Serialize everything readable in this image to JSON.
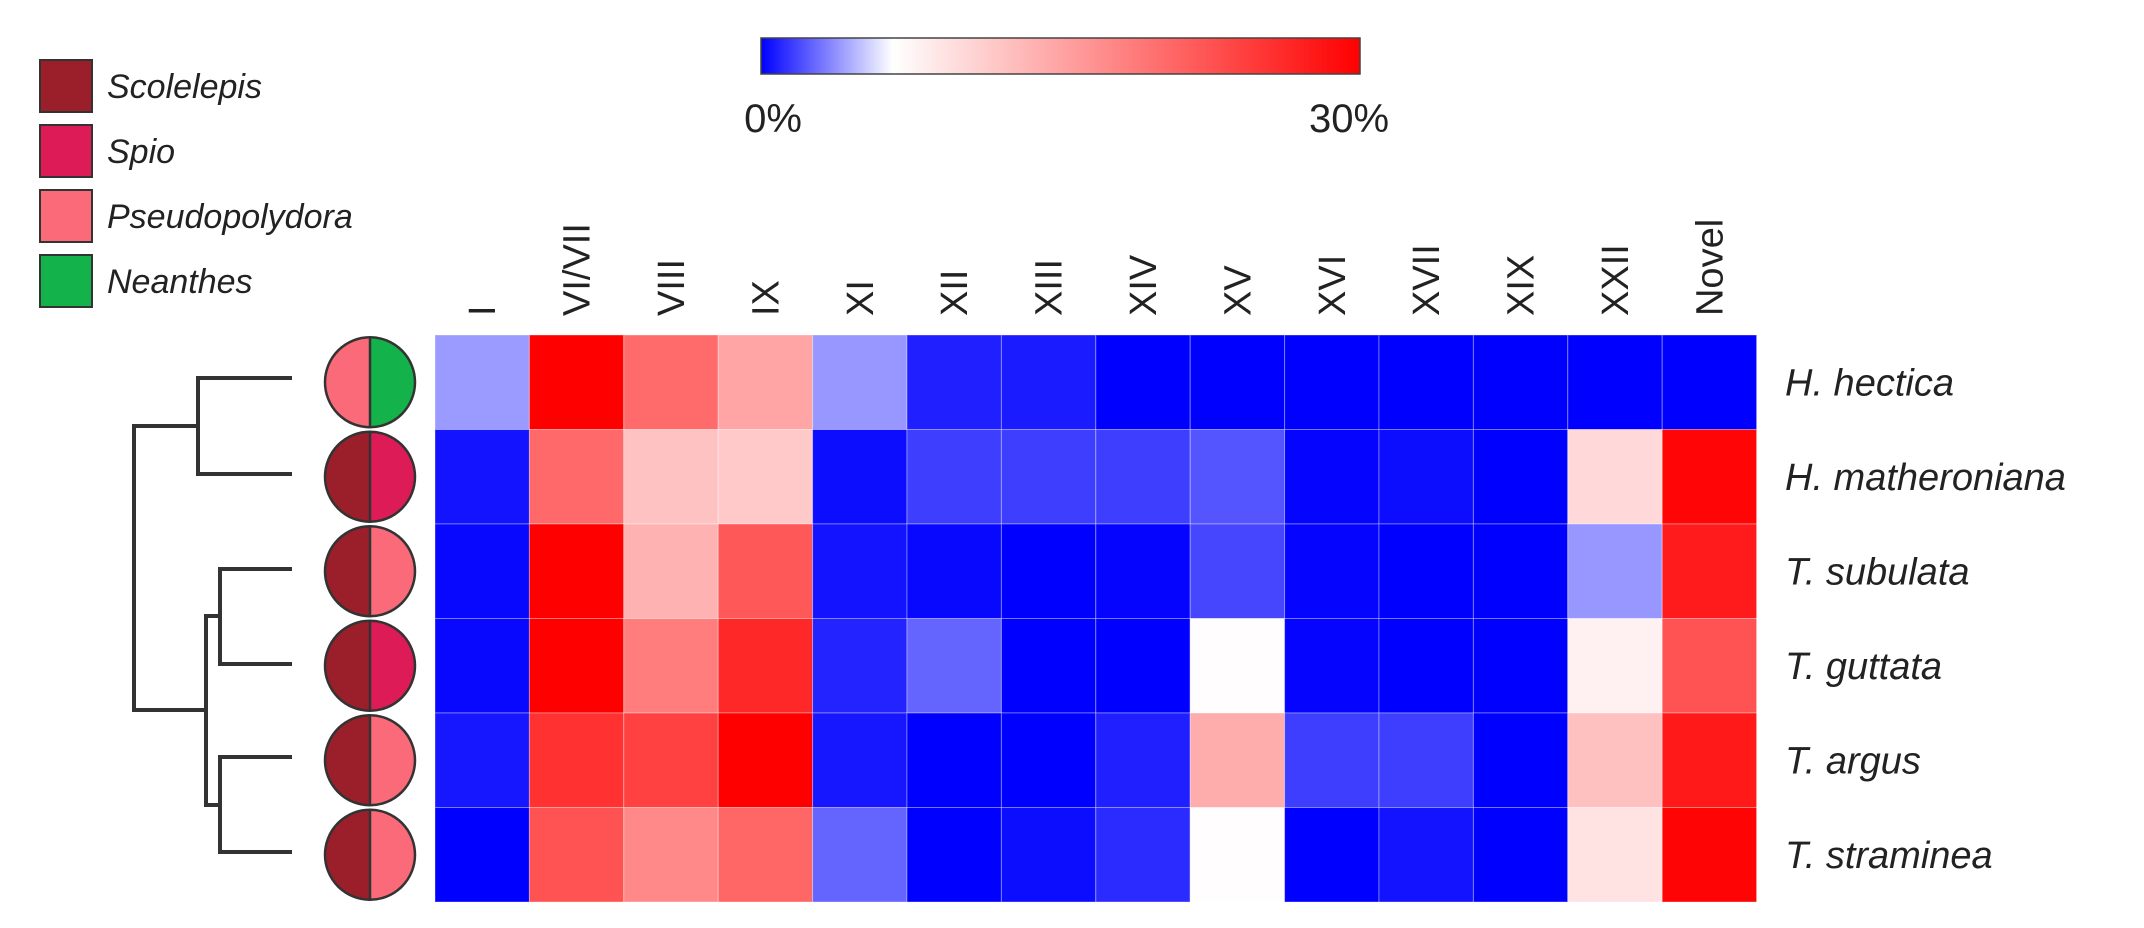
{
  "chart_data": {
    "type": "heatmap",
    "colorbar": {
      "min_label": "0%",
      "max_label": "30%",
      "min": 0,
      "max": 30,
      "colors": [
        "#0000ff",
        "#ffffff",
        "#ff0000"
      ]
    },
    "columns": [
      "I",
      "VI/VII",
      "VIII",
      "IX",
      "XI",
      "XII",
      "XIII",
      "XIV",
      "XV",
      "XVI",
      "XVII",
      "XIX",
      "XXII",
      "Novel"
    ],
    "rows": [
      "H. hectica",
      "H. matheroniana",
      "T. subulata",
      "T. guttata",
      "T. argus",
      "T. straminea"
    ],
    "values": [
      [
        4.0,
        30.0,
        20.3,
        14.9,
        3.9,
        0.8,
        0.7,
        0.0,
        0.0,
        0.0,
        0.0,
        0.0,
        0.0,
        0.0
      ],
      [
        0.5,
        20.4,
        12.2,
        11.6,
        0.3,
        1.6,
        1.6,
        1.6,
        2.2,
        0.1,
        0.3,
        0.0,
        10.1,
        29.5
      ],
      [
        0.2,
        30.0,
        13.7,
        21.9,
        0.5,
        0.2,
        0.0,
        0.1,
        1.8,
        0.1,
        0.0,
        0.0,
        3.9,
        27.5
      ],
      [
        0.2,
        30.0,
        18.5,
        26.3,
        0.9,
        2.6,
        0.0,
        0.0,
        6.8,
        0.1,
        0.0,
        0.0,
        7.9,
        22.4
      ],
      [
        0.6,
        25.5,
        24.0,
        30.0,
        0.6,
        0.0,
        0.0,
        0.8,
        14.2,
        1.6,
        1.6,
        0.0,
        12.4,
        27.7
      ],
      [
        0.0,
        22.4,
        17.5,
        20.6,
        2.6,
        0.0,
        0.3,
        1.1,
        6.8,
        0.0,
        0.5,
        0.0,
        9.2,
        29.6
      ]
    ],
    "legend": [
      {
        "label": "Scolelepis",
        "color": "#9b1f2b"
      },
      {
        "label": "Spio",
        "color": "#dc1b57"
      },
      {
        "label": "Pseudopolydora",
        "color": "#fb6a79"
      },
      {
        "label": "Neanthes",
        "color": "#13b24a"
      }
    ],
    "row_markers": [
      [
        "#fb6a79",
        "#13b24a"
      ],
      [
        "#9b1f2b",
        "#dc1b57"
      ],
      [
        "#9b1f2b",
        "#fb6a79"
      ],
      [
        "#9b1f2b",
        "#dc1b57"
      ],
      [
        "#9b1f2b",
        "#fb6a79"
      ],
      [
        "#9b1f2b",
        "#fb6a79"
      ]
    ],
    "dendrogram": "((H. hectica, H. matheroniana), ((T. subulata, T. guttata), (T. argus, T. straminea)))"
  }
}
